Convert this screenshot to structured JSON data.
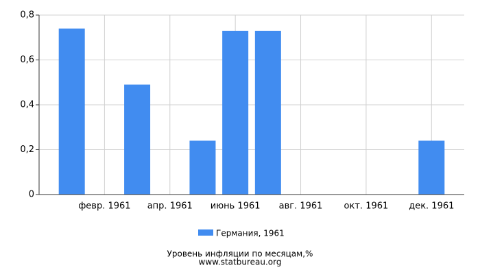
{
  "chart_data": {
    "type": "bar",
    "categories": [
      null,
      "февр. 1961",
      null,
      "апр. 1961",
      null,
      "июнь 1961",
      null,
      "авг. 1961",
      null,
      "окт. 1961",
      null,
      "дек. 1961"
    ],
    "series": [
      {
        "name": "Германия, 1961",
        "color": "#418cf0",
        "values": [
          0.74,
          0,
          0.49,
          0,
          0.24,
          0.73,
          0.73,
          0,
          0,
          0,
          0,
          0.24
        ]
      }
    ],
    "ylim": [
      0,
      0.8
    ],
    "yticks": [
      0,
      {
        "value": 0.2,
        "label": "0,2"
      },
      {
        "value": 0.4,
        "label": "0,4"
      },
      {
        "value": 0.6,
        "label": "0,6"
      },
      {
        "value": 0.8,
        "label": "0,8"
      }
    ],
    "grid": true,
    "xlabel": "Уровень инфляции по месяцам,%",
    "source": "www.statbureau.org"
  }
}
